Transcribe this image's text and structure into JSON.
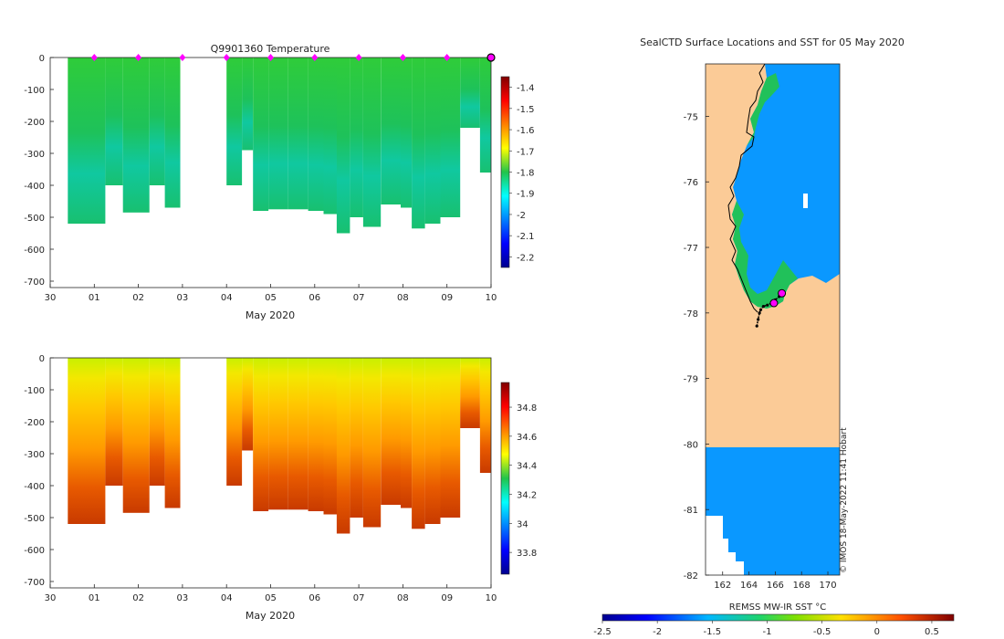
{
  "chart_data": [
    {
      "type": "heatmap",
      "title": "Q9901360  Temperature",
      "xlabel": "May 2020",
      "x_ticks": [
        "30",
        "01",
        "02",
        "03",
        "04",
        "05",
        "06",
        "07",
        "08",
        "09",
        "10"
      ],
      "y_ticks": [
        "0",
        "-100",
        "-200",
        "-300",
        "-400",
        "-500",
        "-600",
        "-700"
      ],
      "ylim": [
        -720,
        0
      ],
      "xlim": [
        0,
        10
      ],
      "colorbar": {
        "min": -2.25,
        "max": -1.35,
        "ticks": [
          "-1.4",
          "-1.5",
          "-1.6",
          "-1.7",
          "-1.8",
          "-1.9",
          "-2",
          "-2.1",
          "-2.2"
        ]
      },
      "profile_markers_day": [
        1,
        2,
        3,
        4,
        5,
        6,
        7,
        8,
        9
      ],
      "last_profile_day": 10,
      "profiles": [
        {
          "day": 0.7,
          "depth": 520
        },
        {
          "day": 1.25,
          "depth": 400
        },
        {
          "day": 1.65,
          "depth": 485
        },
        {
          "day": 2.25,
          "depth": 400
        },
        {
          "day": 2.6,
          "depth": 470
        },
        {
          "day": 2.95,
          "depth": 455
        },
        {
          "day": 4.0,
          "depth": 400
        },
        {
          "day": 4.35,
          "depth": 290
        },
        {
          "day": 4.6,
          "depth": 480
        },
        {
          "day": 4.95,
          "depth": 475
        },
        {
          "day": 5.4,
          "depth": 475
        },
        {
          "day": 5.85,
          "depth": 480
        },
        {
          "day": 6.2,
          "depth": 490
        },
        {
          "day": 6.5,
          "depth": 550
        },
        {
          "day": 6.8,
          "depth": 500
        },
        {
          "day": 7.1,
          "depth": 530
        },
        {
          "day": 7.5,
          "depth": 460
        },
        {
          "day": 7.95,
          "depth": 470
        },
        {
          "day": 8.2,
          "depth": 535
        },
        {
          "day": 8.5,
          "depth": 520
        },
        {
          "day": 8.85,
          "depth": 500
        },
        {
          "day": 9.3,
          "depth": 220
        },
        {
          "day": 9.75,
          "depth": 360
        }
      ]
    },
    {
      "type": "heatmap",
      "title": "",
      "xlabel": "May 2020",
      "x_ticks": [
        "30",
        "01",
        "02",
        "03",
        "04",
        "05",
        "06",
        "07",
        "08",
        "09",
        "10"
      ],
      "y_ticks": [
        "0",
        "-100",
        "-200",
        "-300",
        "-400",
        "-500",
        "-600",
        "-700"
      ],
      "ylim": [
        -720,
        0
      ],
      "xlim": [
        0,
        10
      ],
      "colorbar": {
        "min": 33.65,
        "max": 34.97,
        "ticks": [
          "34.8",
          "34.6",
          "34.4",
          "34.2",
          "34",
          "33.8"
        ]
      }
    },
    {
      "type": "heatmap",
      "title": "SealCTD Surface Locations and SST for 05 May 2020",
      "xlabel": "",
      "x_ticks": [
        "162",
        "164",
        "166",
        "168",
        "170"
      ],
      "y_ticks": [
        "-75",
        "-76",
        "-77",
        "-78",
        "-79",
        "-80",
        "-81",
        "-82"
      ],
      "xlim": [
        160.7,
        170.9
      ],
      "ylim": [
        -82,
        -74.2
      ],
      "watermark": "© IMOS 18-May-2022 11:41 Hobart",
      "colorbar": {
        "label": "REMSS MW-IR SST °C",
        "min": -2.5,
        "max": 0.7,
        "ticks": [
          "-2.5",
          "-2",
          "-1.5",
          "-1",
          "-0.5",
          "0",
          "0.5"
        ]
      },
      "track_points": [
        [
          164.6,
          -78.2
        ],
        [
          164.7,
          -78.1
        ],
        [
          164.8,
          -78.0
        ],
        [
          164.9,
          -77.95
        ],
        [
          165.1,
          -77.9
        ],
        [
          165.4,
          -77.88
        ],
        [
          165.7,
          -77.85
        ],
        [
          166.0,
          -77.8
        ],
        [
          166.3,
          -77.75
        ],
        [
          166.5,
          -77.72
        ]
      ],
      "highlight_points": [
        [
          166.5,
          -77.7
        ],
        [
          165.9,
          -77.85
        ]
      ]
    }
  ],
  "colors": {
    "marker": "#ff00ff",
    "land": "#fbcb97",
    "ocean": "#0a98ff",
    "ocean_green": "#21c15a"
  }
}
